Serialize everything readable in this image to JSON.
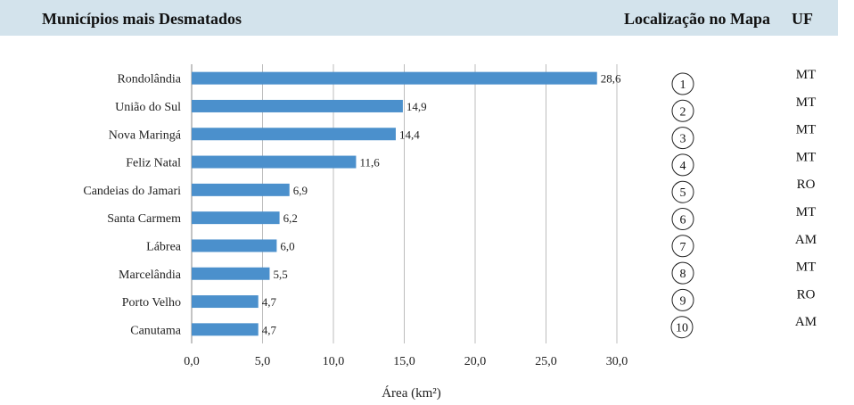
{
  "header": {
    "title": "Municípios mais Desmatados",
    "map_label": "Localização no Mapa",
    "uf_label": "UF"
  },
  "colors": {
    "header_bg": "#d3e3ec",
    "bar": "#4b90cc",
    "grid": "#bdbdbd"
  },
  "chart_data": {
    "type": "bar",
    "orientation": "horizontal",
    "categories": [
      "Rondolândia",
      "União do Sul",
      "Nova Maringá",
      "Feliz Natal",
      "Candeias do Jamari",
      "Santa Carmem",
      "Lábrea",
      "Marcelândia",
      "Porto Velho",
      "Canutama"
    ],
    "values": [
      28.6,
      14.9,
      14.4,
      11.6,
      6.9,
      6.2,
      6.0,
      5.5,
      4.7,
      4.7
    ],
    "value_labels": [
      "28,6",
      "14,9",
      "14,4",
      "11,6",
      "6,9",
      "6,2",
      "6,0",
      "5,5",
      "4,7",
      "4,7"
    ],
    "xlabel": "Área (km²)",
    "ylabel": "",
    "xlim": [
      0,
      30
    ],
    "x_ticks": [
      "0,0",
      "5,0",
      "10,0",
      "15,0",
      "20,0",
      "25,0",
      "30,0"
    ],
    "grid": true
  },
  "table": {
    "locations": [
      "1",
      "2",
      "3",
      "4",
      "5",
      "6",
      "7",
      "8",
      "9",
      "10"
    ],
    "uf": [
      "MT",
      "MT",
      "MT",
      "MT",
      "RO",
      "MT",
      "AM",
      "MT",
      "RO",
      "AM"
    ]
  }
}
